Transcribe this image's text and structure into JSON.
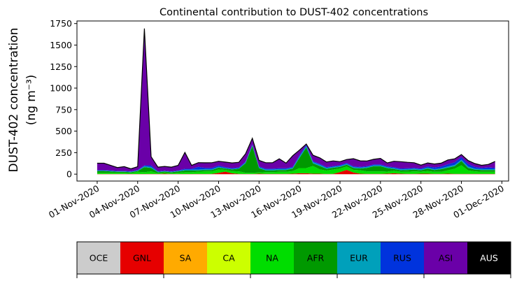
{
  "chart_data": {
    "type": "area",
    "stacked": true,
    "title": "Continental contribution to DUST-402 concentrations",
    "ylabel_line1": "DUST-402 concentration",
    "ylabel_line2": "(ng m⁻³)",
    "ylim": [
      -80,
      1780
    ],
    "yticks": [
      0,
      250,
      500,
      750,
      1000,
      1250,
      1500,
      1750
    ],
    "xlim": [
      "2020-10-30T12:00",
      "2020-12-01T12:00"
    ],
    "xtick_dates": [
      "2020-11-01",
      "2020-11-04",
      "2020-11-07",
      "2020-11-10",
      "2020-11-13",
      "2020-11-16",
      "2020-11-19",
      "2020-11-22",
      "2020-11-25",
      "2020-11-28",
      "2020-12-01"
    ],
    "xtick_labels": [
      "01-Nov-2020",
      "04-Nov-2020",
      "07-Nov-2020",
      "10-Nov-2020",
      "13-Nov-2020",
      "16-Nov-2020",
      "19-Nov-2020",
      "22-Nov-2020",
      "25-Nov-2020",
      "28-Nov-2020",
      "01-Dec-2020"
    ],
    "x_start": "2020-11-01",
    "x_step_hours": 12,
    "series": [
      {
        "name": "OCE",
        "color": "#cccccc",
        "values": [
          0,
          0,
          0,
          0,
          0,
          0,
          0,
          0,
          0,
          0,
          0,
          0,
          0,
          0,
          0,
          0,
          0,
          0,
          0,
          0,
          0,
          0,
          0,
          0,
          0,
          0,
          0,
          0,
          0,
          0,
          0,
          0,
          0,
          0,
          0,
          0,
          0,
          0,
          0,
          0,
          0,
          0,
          0,
          0,
          0,
          0,
          0,
          0,
          0,
          0,
          0,
          0,
          0,
          0,
          0,
          0,
          0,
          0,
          0,
          0
        ]
      },
      {
        "name": "GNL",
        "color": "#e60000",
        "values": [
          2,
          2,
          2,
          2,
          2,
          2,
          2,
          2,
          3,
          2,
          5,
          2,
          2,
          2,
          2,
          4,
          2,
          3,
          15,
          30,
          10,
          3,
          2,
          2,
          5,
          3,
          3,
          3,
          3,
          5,
          10,
          10,
          5,
          5,
          2,
          4,
          25,
          50,
          20,
          5,
          3,
          3,
          3,
          5,
          10,
          5,
          3,
          3,
          5,
          5,
          3,
          3,
          5,
          3,
          3,
          3,
          3,
          3,
          3,
          3
        ]
      },
      {
        "name": "SA",
        "color": "#ffaa00",
        "values": [
          0,
          0,
          0,
          0,
          0,
          0,
          0,
          0,
          0,
          0,
          0,
          0,
          0,
          0,
          0,
          0,
          0,
          0,
          0,
          0,
          0,
          0,
          0,
          0,
          0,
          0,
          0,
          0,
          0,
          0,
          0,
          0,
          0,
          0,
          0,
          0,
          0,
          0,
          0,
          0,
          0,
          0,
          0,
          0,
          0,
          0,
          0,
          0,
          0,
          0,
          0,
          0,
          0,
          0,
          0,
          0,
          0,
          0,
          0,
          0
        ]
      },
      {
        "name": "CA",
        "color": "#ccff00",
        "values": [
          0,
          0,
          0,
          0,
          0,
          0,
          0,
          0,
          0,
          0,
          0,
          0,
          0,
          0,
          0,
          0,
          0,
          0,
          0,
          0,
          0,
          0,
          0,
          0,
          0,
          0,
          0,
          0,
          0,
          0,
          0,
          0,
          0,
          0,
          0,
          0,
          0,
          0,
          0,
          0,
          0,
          0,
          0,
          0,
          0,
          0,
          0,
          0,
          0,
          0,
          0,
          0,
          0,
          0,
          0,
          0,
          0,
          0,
          0,
          0
        ]
      },
      {
        "name": "NA",
        "color": "#00dd00",
        "values": [
          15,
          15,
          15,
          15,
          15,
          10,
          25,
          20,
          30,
          10,
          15,
          10,
          15,
          20,
          20,
          25,
          30,
          30,
          40,
          20,
          25,
          30,
          15,
          15,
          15,
          20,
          20,
          25,
          25,
          30,
          60,
          60,
          90,
          50,
          40,
          50,
          40,
          40,
          30,
          40,
          30,
          30,
          30,
          25,
          30,
          25,
          25,
          30,
          25,
          30,
          25,
          25,
          40,
          60,
          100,
          40,
          30,
          25,
          25,
          25
        ]
      },
      {
        "name": "AFR",
        "color": "#009900",
        "values": [
          20,
          20,
          15,
          10,
          10,
          10,
          10,
          60,
          40,
          10,
          10,
          10,
          15,
          20,
          20,
          15,
          15,
          15,
          20,
          15,
          20,
          30,
          110,
          310,
          50,
          20,
          20,
          20,
          20,
          30,
          120,
          240,
          30,
          40,
          20,
          20,
          20,
          20,
          20,
          20,
          40,
          60,
          60,
          40,
          20,
          15,
          20,
          20,
          15,
          30,
          20,
          30,
          30,
          30,
          50,
          30,
          20,
          20,
          20,
          20
        ]
      },
      {
        "name": "EUR",
        "color": "#00a0bb",
        "values": [
          5,
          5,
          5,
          5,
          5,
          5,
          5,
          10,
          10,
          5,
          5,
          5,
          5,
          10,
          10,
          10,
          10,
          10,
          10,
          5,
          5,
          5,
          10,
          10,
          10,
          10,
          10,
          10,
          10,
          10,
          15,
          15,
          15,
          15,
          10,
          10,
          10,
          10,
          10,
          10,
          10,
          10,
          10,
          10,
          10,
          10,
          10,
          10,
          10,
          10,
          10,
          10,
          15,
          15,
          15,
          15,
          10,
          10,
          10,
          10
        ]
      },
      {
        "name": "RUS",
        "color": "#0033dd",
        "values": [
          5,
          5,
          5,
          5,
          5,
          5,
          5,
          10,
          20,
          5,
          5,
          5,
          5,
          10,
          10,
          30,
          15,
          15,
          15,
          10,
          10,
          10,
          10,
          10,
          10,
          10,
          10,
          10,
          10,
          10,
          15,
          15,
          10,
          10,
          10,
          10,
          10,
          10,
          10,
          10,
          10,
          10,
          10,
          10,
          10,
          10,
          10,
          10,
          10,
          15,
          20,
          20,
          25,
          30,
          30,
          30,
          20,
          15,
          20,
          15
        ]
      },
      {
        "name": "ASI",
        "color": "#6a00a8",
        "values": [
          80,
          80,
          60,
          40,
          50,
          30,
          40,
          1590,
          100,
          50,
          50,
          50,
          60,
          190,
          40,
          50,
          60,
          60,
          50,
          60,
          60,
          60,
          90,
          70,
          70,
          70,
          70,
          110,
          60,
          130,
          60,
          10,
          70,
          70,
          60,
          60,
          40,
          40,
          90,
          70,
          60,
          60,
          70,
          40,
          70,
          80,
          70,
          60,
          40,
          40,
          40,
          40,
          50,
          40,
          30,
          40,
          40,
          30,
          35,
          75
        ]
      },
      {
        "name": "AUS",
        "color": "#000000",
        "values": [
          0,
          0,
          0,
          0,
          0,
          0,
          0,
          0,
          0,
          0,
          0,
          0,
          0,
          0,
          0,
          0,
          0,
          0,
          0,
          0,
          0,
          0,
          0,
          0,
          0,
          0,
          0,
          0,
          0,
          0,
          0,
          0,
          0,
          0,
          0,
          0,
          0,
          0,
          0,
          0,
          0,
          0,
          0,
          0,
          0,
          0,
          0,
          0,
          0,
          0,
          0,
          0,
          0,
          0,
          0,
          0,
          0,
          0,
          0,
          0
        ]
      }
    ],
    "legend": {
      "placement": "bottom",
      "items": [
        {
          "label": "OCE",
          "color": "#cccccc",
          "text_color": "#000000"
        },
        {
          "label": "GNL",
          "color": "#e60000",
          "text_color": "#000000"
        },
        {
          "label": "SA",
          "color": "#ffaa00",
          "text_color": "#000000"
        },
        {
          "label": "CA",
          "color": "#ccff00",
          "text_color": "#000000"
        },
        {
          "label": "NA",
          "color": "#00dd00",
          "text_color": "#000000"
        },
        {
          "label": "AFR",
          "color": "#009900",
          "text_color": "#000000"
        },
        {
          "label": "EUR",
          "color": "#00a0bb",
          "text_color": "#000000"
        },
        {
          "label": "RUS",
          "color": "#0033dd",
          "text_color": "#000000"
        },
        {
          "label": "ASI",
          "color": "#6a00a8",
          "text_color": "#000000"
        },
        {
          "label": "AUS",
          "color": "#000000",
          "text_color": "#ffffff"
        }
      ]
    }
  }
}
